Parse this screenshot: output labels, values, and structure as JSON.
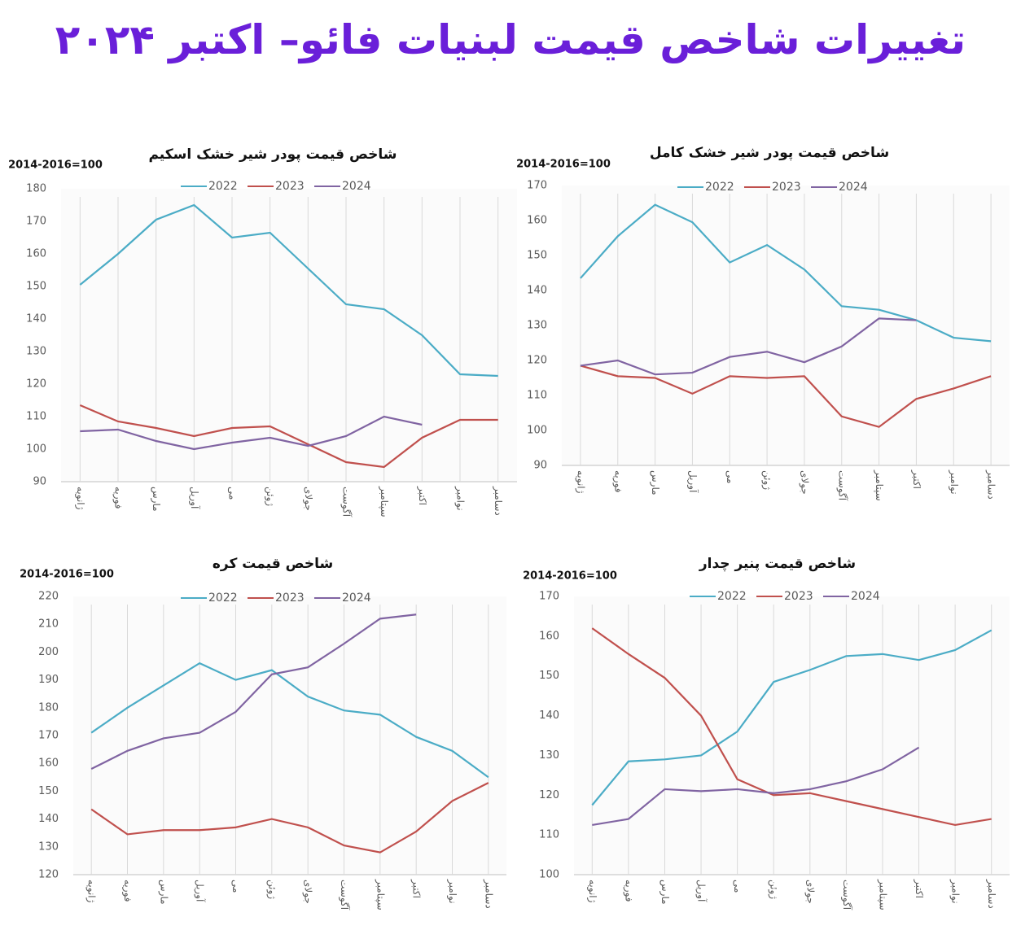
{
  "title": "تغییرات شاخص قیمت لبنیات فائو– اکتبر ۲۰۲۴",
  "chart_data": [
    {
      "type": "line",
      "title": "شاخص قیمت پودر شیر خشک اسکیم",
      "y_label": "2014-2016=100",
      "categories": [
        "ژانویه",
        "فوریه",
        "مارس",
        "آوریل",
        "می",
        "ژوئن",
        "جولای",
        "آگوست",
        "سپتامبر",
        "اکتبر",
        "نوامبر",
        "دسامبر"
      ],
      "ylim": [
        90,
        180
      ],
      "yticks": [
        90,
        100,
        110,
        120,
        130,
        140,
        150,
        160,
        170,
        180
      ],
      "grid": true,
      "series": [
        {
          "name": "2022",
          "color": "#4bacc6",
          "values": [
            150.5,
            160,
            170.5,
            175,
            165,
            166.5,
            155.5,
            144.5,
            143,
            135,
            123,
            122.5
          ]
        },
        {
          "name": "2023",
          "color": "#c0504d",
          "values": [
            113.5,
            108.5,
            106.5,
            104,
            106.5,
            107,
            101.5,
            96,
            94.5,
            103.5,
            109,
            109
          ]
        },
        {
          "name": "2024",
          "color": "#8064a2",
          "values": [
            105.5,
            106,
            102.5,
            100,
            102,
            103.5,
            101,
            104,
            110,
            107.5,
            null,
            null
          ]
        }
      ]
    },
    {
      "type": "line",
      "title": "شاخص قیمت پودر شیر خشک کامل",
      "y_label": "2014-2016=100",
      "categories": [
        "ژانویه",
        "فوریه",
        "مارس",
        "آوریل",
        "می",
        "ژوئن",
        "جولای",
        "آگوست",
        "سپتامبر",
        "اکتبر",
        "نوامبر",
        "دسامبر"
      ],
      "ylim": [
        90,
        170
      ],
      "yticks": [
        90,
        100,
        110,
        120,
        130,
        140,
        150,
        160,
        170
      ],
      "grid": true,
      "series": [
        {
          "name": "2022",
          "color": "#4bacc6",
          "values": [
            143.5,
            155.5,
            164.5,
            159.5,
            148,
            153,
            146,
            135.5,
            134.5,
            131.5,
            126.5,
            125.5
          ]
        },
        {
          "name": "2023",
          "color": "#c0504d",
          "values": [
            118.5,
            115.5,
            115,
            110.5,
            115.5,
            115,
            115.5,
            104,
            101,
            109,
            112,
            115.5
          ]
        },
        {
          "name": "2024",
          "color": "#8064a2",
          "values": [
            118.5,
            120,
            116,
            116.5,
            121,
            122.5,
            119.5,
            124,
            132,
            131.5,
            null,
            null
          ]
        }
      ]
    },
    {
      "type": "line",
      "title": "شاخص قیمت کره",
      "y_label": "2014-2016=100",
      "categories": [
        "ژانویه",
        "فوریه",
        "مارس",
        "آوریل",
        "می",
        "ژوئن",
        "جولای",
        "آگوست",
        "سپتامبر",
        "اکتبر",
        "نوامبر",
        "دسامبر"
      ],
      "ylim": [
        120,
        220
      ],
      "yticks": [
        120,
        130,
        140,
        150,
        160,
        170,
        180,
        190,
        200,
        210,
        220
      ],
      "grid": true,
      "series": [
        {
          "name": "2022",
          "color": "#4bacc6",
          "values": [
            171,
            180,
            188,
            196,
            190,
            193.5,
            184,
            179,
            177.5,
            169.5,
            164.5,
            155
          ]
        },
        {
          "name": "2023",
          "color": "#c0504d",
          "values": [
            143.5,
            134.5,
            136,
            136,
            137,
            140,
            137,
            130.5,
            128,
            135.5,
            146.5,
            153
          ]
        },
        {
          "name": "2024",
          "color": "#8064a2",
          "values": [
            158,
            164.5,
            169,
            171,
            178.5,
            192,
            194.5,
            203,
            212,
            213.5,
            null,
            null
          ]
        }
      ]
    },
    {
      "type": "line",
      "title": "شاخص قیمت پنیر چدار",
      "y_label": "2014-2016=100",
      "categories": [
        "ژانویه",
        "فوریه",
        "مارس",
        "آوریل",
        "می",
        "ژوئن",
        "جولای",
        "آگوست",
        "سپتامبر",
        "اکتبر",
        "نوامبر",
        "دسامبر"
      ],
      "ylim": [
        100,
        170
      ],
      "yticks": [
        100,
        110,
        120,
        130,
        140,
        150,
        160,
        170
      ],
      "grid": true,
      "series": [
        {
          "name": "2022",
          "color": "#4bacc6",
          "values": [
            117.5,
            128.5,
            129,
            130,
            136,
            148.5,
            151.5,
            155,
            155.5,
            154,
            156.5,
            161.5
          ]
        },
        {
          "name": "2023",
          "color": "#c0504d",
          "values": [
            162,
            155.5,
            149.5,
            140,
            124,
            120,
            120.5,
            118.5,
            116.5,
            114.5,
            112.5,
            114
          ]
        },
        {
          "name": "2024",
          "color": "#8064a2",
          "values": [
            112.5,
            114,
            121.5,
            121,
            121.5,
            120.5,
            121.5,
            123.5,
            126.5,
            132,
            null,
            null
          ]
        }
      ]
    }
  ]
}
